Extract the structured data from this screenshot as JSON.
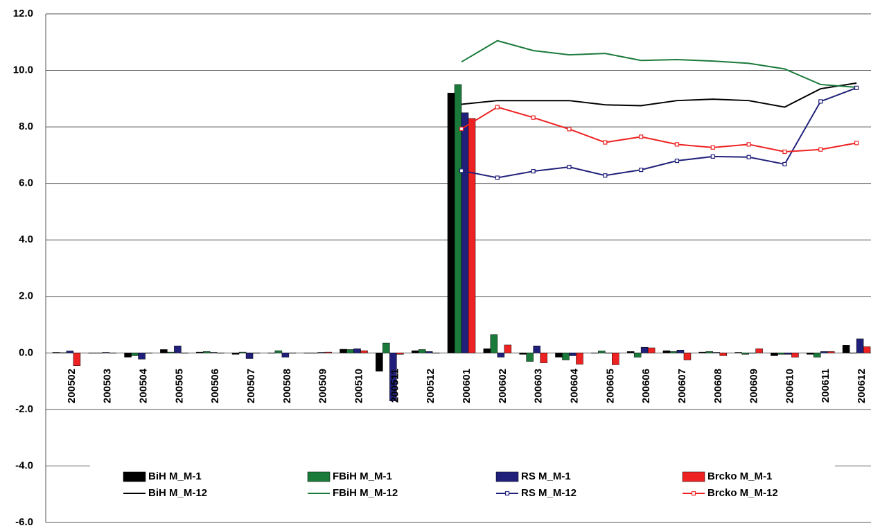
{
  "chart_data": {
    "type": "bar",
    "categories": [
      "200502",
      "200503",
      "200504",
      "200505",
      "200506",
      "200507",
      "200508",
      "200509",
      "200510",
      "200511",
      "200512",
      "200601",
      "200602",
      "200603",
      "200604",
      "200605",
      "200606",
      "200607",
      "200608",
      "200609",
      "200610",
      "200611",
      "200612"
    ],
    "ylim": [
      -6,
      12
    ],
    "yticks": [
      {
        "value": -6,
        "label": "-6.0"
      },
      {
        "value": -4,
        "label": "-4.0"
      },
      {
        "value": -2,
        "label": "-2.0"
      },
      {
        "value": 0,
        "label": "0.0"
      },
      {
        "value": 2,
        "label": "2.0"
      },
      {
        "value": 4,
        "label": "4.0"
      },
      {
        "value": 6,
        "label": "6.0"
      },
      {
        "value": 8,
        "label": "8.0"
      },
      {
        "value": 10,
        "label": "10.0"
      },
      {
        "value": 12,
        "label": "12.0"
      }
    ],
    "grid": true,
    "series": [
      {
        "name": "BiH M_M-1",
        "type": "bar",
        "color": "#000000",
        "values": [
          0.02,
          0,
          -0.15,
          0.12,
          0.03,
          -0.05,
          0,
          0,
          0.13,
          -0.65,
          0.08,
          9.2,
          0.15,
          -0.05,
          -0.15,
          0,
          0.05,
          0.08,
          0.03,
          0.02,
          -0.1,
          -0.05,
          0.27
        ]
      },
      {
        "name": "FBiH M_M-1",
        "type": "bar",
        "color": "#1a7a3a",
        "values": [
          0.01,
          0,
          -0.1,
          0.03,
          0.05,
          0.03,
          0.08,
          0,
          0.12,
          0.35,
          0.12,
          9.5,
          0.65,
          -0.3,
          -0.25,
          0.07,
          -0.15,
          0.05,
          0.05,
          -0.05,
          -0.05,
          -0.15,
          0
        ]
      },
      {
        "name": "RS M_M-1",
        "type": "bar",
        "color": "#20207a",
        "values": [
          0.07,
          0.02,
          -0.22,
          0.25,
          0.02,
          -0.2,
          -0.15,
          0.02,
          0.15,
          -1.7,
          0.05,
          8.5,
          -0.15,
          0.25,
          -0.1,
          0,
          0.2,
          0.1,
          0.02,
          0,
          -0.05,
          0.05,
          0.5
        ]
      },
      {
        "name": "Brcko M_M-1",
        "type": "bar",
        "color": "#ee2222",
        "values": [
          -0.45,
          0,
          0,
          0,
          0,
          0,
          0,
          0.03,
          0.08,
          -0.05,
          0,
          8.3,
          0.28,
          -0.35,
          -0.4,
          -0.42,
          0.18,
          -0.25,
          -0.1,
          0.15,
          -0.15,
          0.05,
          0.22
        ]
      },
      {
        "name": "BiH M_M-12",
        "type": "line",
        "color": "#000000",
        "marker": false,
        "values": [
          null,
          null,
          null,
          null,
          null,
          null,
          null,
          null,
          null,
          null,
          null,
          8.8,
          8.93,
          8.93,
          8.93,
          8.78,
          8.75,
          8.93,
          8.98,
          8.93,
          8.7,
          9.35,
          9.55
        ]
      },
      {
        "name": "FBiH M_M-12",
        "type": "line",
        "color": "#1a7a3a",
        "marker": false,
        "values": [
          null,
          null,
          null,
          null,
          null,
          null,
          null,
          null,
          null,
          null,
          null,
          10.3,
          11.05,
          10.7,
          10.55,
          10.6,
          10.35,
          10.38,
          10.33,
          10.25,
          10.05,
          9.5,
          9.4
        ]
      },
      {
        "name": "RS M_M-12",
        "type": "line",
        "color": "#20207a",
        "marker": true,
        "values": [
          null,
          null,
          null,
          null,
          null,
          null,
          null,
          null,
          null,
          null,
          null,
          6.45,
          6.2,
          6.43,
          6.58,
          6.28,
          6.48,
          6.8,
          6.95,
          6.93,
          6.68,
          8.9,
          9.38
        ]
      },
      {
        "name": "Brcko M_M-12",
        "type": "line",
        "color": "#ee2222",
        "marker": true,
        "values": [
          null,
          null,
          null,
          null,
          null,
          null,
          null,
          null,
          null,
          null,
          null,
          7.93,
          8.7,
          8.33,
          7.92,
          7.45,
          7.65,
          7.38,
          7.27,
          7.38,
          7.12,
          7.2,
          7.43
        ]
      }
    ]
  }
}
